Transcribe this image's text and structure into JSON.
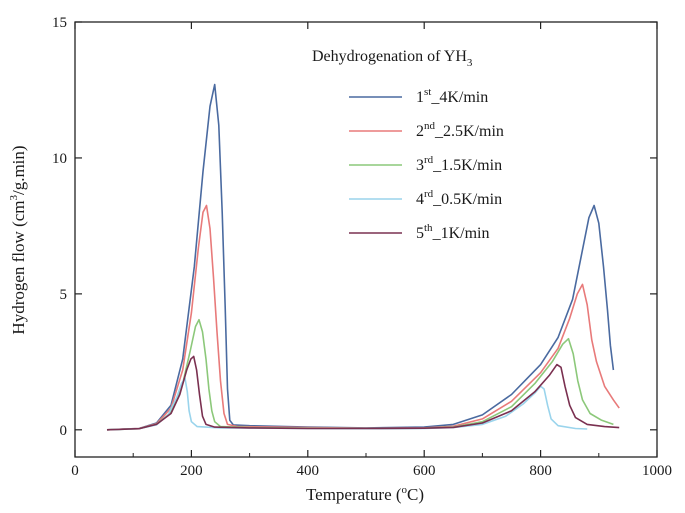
{
  "chart_data": {
    "type": "line",
    "title": "",
    "xlabel": "Temperature (",
    "xlabel_sup": "o",
    "xlabel_end": "C)",
    "ylabel": "Hydrogen  flow (cm",
    "ylabel_sup": "3",
    "ylabel_end": "/g.min)",
    "xlim": [
      0,
      1000
    ],
    "ylim": [
      -1,
      15
    ],
    "xticks": [
      0,
      200,
      400,
      600,
      800,
      1000
    ],
    "yticks": [
      0,
      5,
      10,
      15
    ],
    "grid": false,
    "legend_position": "top-right",
    "legend_title": "Dehydrogenation of YH",
    "legend_title_sub": "3",
    "series": [
      {
        "name": "1st_4K/min",
        "label_num": "1",
        "label_sup": "st",
        "label_rest": "_4K/min",
        "color": "#4a6aa0",
        "points": [
          [
            55,
            0
          ],
          [
            110,
            0.05
          ],
          [
            140,
            0.25
          ],
          [
            165,
            0.9
          ],
          [
            185,
            2.6
          ],
          [
            205,
            6.0
          ],
          [
            220,
            9.5
          ],
          [
            232,
            11.9
          ],
          [
            240,
            12.7
          ],
          [
            247,
            11.2
          ],
          [
            253,
            8.0
          ],
          [
            258,
            4.5
          ],
          [
            262,
            1.5
          ],
          [
            266,
            0.35
          ],
          [
            272,
            0.18
          ],
          [
            300,
            0.15
          ],
          [
            400,
            0.1
          ],
          [
            500,
            0.07
          ],
          [
            600,
            0.1
          ],
          [
            650,
            0.2
          ],
          [
            700,
            0.55
          ],
          [
            750,
            1.3
          ],
          [
            800,
            2.4
          ],
          [
            830,
            3.4
          ],
          [
            855,
            4.8
          ],
          [
            870,
            6.4
          ],
          [
            883,
            7.8
          ],
          [
            892,
            8.25
          ],
          [
            900,
            7.6
          ],
          [
            908,
            6.0
          ],
          [
            915,
            4.4
          ],
          [
            920,
            3.1
          ],
          [
            925,
            2.2
          ]
        ]
      },
      {
        "name": "2nd_2.5K/min",
        "label_num": "2",
        "label_sup": "nd",
        "label_rest": "_2.5K/min",
        "color": "#e87a7a",
        "points": [
          [
            55,
            0
          ],
          [
            110,
            0.05
          ],
          [
            140,
            0.22
          ],
          [
            165,
            0.8
          ],
          [
            185,
            2.2
          ],
          [
            200,
            4.3
          ],
          [
            212,
            6.7
          ],
          [
            220,
            8.0
          ],
          [
            226,
            8.25
          ],
          [
            232,
            7.4
          ],
          [
            238,
            5.6
          ],
          [
            244,
            3.6
          ],
          [
            250,
            1.8
          ],
          [
            256,
            0.6
          ],
          [
            262,
            0.2
          ],
          [
            280,
            0.12
          ],
          [
            400,
            0.08
          ],
          [
            500,
            0.06
          ],
          [
            600,
            0.07
          ],
          [
            650,
            0.13
          ],
          [
            700,
            0.4
          ],
          [
            750,
            1.05
          ],
          [
            800,
            2.1
          ],
          [
            830,
            3.0
          ],
          [
            850,
            4.1
          ],
          [
            863,
            5.0
          ],
          [
            872,
            5.35
          ],
          [
            880,
            4.6
          ],
          [
            888,
            3.3
          ],
          [
            896,
            2.5
          ],
          [
            910,
            1.6
          ],
          [
            925,
            1.1
          ],
          [
            935,
            0.8
          ]
        ]
      },
      {
        "name": "3rd_1.5K/min",
        "label_num": "3",
        "label_sup": "rd",
        "label_rest": "_1.5K/min",
        "color": "#8cc87a",
        "points": [
          [
            55,
            0
          ],
          [
            110,
            0.04
          ],
          [
            140,
            0.2
          ],
          [
            165,
            0.65
          ],
          [
            185,
            1.7
          ],
          [
            198,
            2.9
          ],
          [
            207,
            3.8
          ],
          [
            213,
            4.05
          ],
          [
            219,
            3.6
          ],
          [
            225,
            2.6
          ],
          [
            230,
            1.5
          ],
          [
            235,
            0.7
          ],
          [
            240,
            0.3
          ],
          [
            250,
            0.12
          ],
          [
            300,
            0.08
          ],
          [
            400,
            0.06
          ],
          [
            500,
            0.05
          ],
          [
            600,
            0.06
          ],
          [
            650,
            0.1
          ],
          [
            700,
            0.3
          ],
          [
            750,
            0.85
          ],
          [
            790,
            1.7
          ],
          [
            820,
            2.5
          ],
          [
            838,
            3.15
          ],
          [
            848,
            3.35
          ],
          [
            856,
            2.8
          ],
          [
            864,
            1.8
          ],
          [
            872,
            1.1
          ],
          [
            885,
            0.6
          ],
          [
            905,
            0.35
          ],
          [
            925,
            0.2
          ]
        ]
      },
      {
        "name": "4rd_0.5K/min",
        "label_num": "4",
        "label_sup": "rd",
        "label_rest": "_0.5K/min",
        "color": "#9ad4ec",
        "points": [
          [
            55,
            0
          ],
          [
            110,
            0.04
          ],
          [
            140,
            0.18
          ],
          [
            160,
            0.55
          ],
          [
            175,
            1.2
          ],
          [
            183,
            1.7
          ],
          [
            189,
            1.9
          ],
          [
            193,
            1.4
          ],
          [
            196,
            0.7
          ],
          [
            200,
            0.3
          ],
          [
            210,
            0.12
          ],
          [
            250,
            0.07
          ],
          [
            400,
            0.05
          ],
          [
            500,
            0.04
          ],
          [
            600,
            0.05
          ],
          [
            650,
            0.08
          ],
          [
            700,
            0.2
          ],
          [
            740,
            0.5
          ],
          [
            770,
            0.95
          ],
          [
            790,
            1.35
          ],
          [
            800,
            1.6
          ],
          [
            806,
            1.5
          ],
          [
            812,
            0.9
          ],
          [
            818,
            0.4
          ],
          [
            830,
            0.15
          ],
          [
            860,
            0.05
          ],
          [
            880,
            0.03
          ]
        ]
      },
      {
        "name": "5th_1K/min",
        "label_num": "5",
        "label_sup": "th",
        "label_rest": "_1K/min",
        "color": "#7a3050",
        "points": [
          [
            55,
            0
          ],
          [
            110,
            0.04
          ],
          [
            140,
            0.2
          ],
          [
            165,
            0.6
          ],
          [
            180,
            1.3
          ],
          [
            192,
            2.2
          ],
          [
            199,
            2.6
          ],
          [
            204,
            2.7
          ],
          [
            209,
            2.2
          ],
          [
            214,
            1.3
          ],
          [
            219,
            0.5
          ],
          [
            225,
            0.2
          ],
          [
            240,
            0.1
          ],
          [
            300,
            0.07
          ],
          [
            400,
            0.05
          ],
          [
            500,
            0.05
          ],
          [
            600,
            0.06
          ],
          [
            650,
            0.09
          ],
          [
            700,
            0.25
          ],
          [
            750,
            0.7
          ],
          [
            790,
            1.4
          ],
          [
            815,
            2.0
          ],
          [
            828,
            2.4
          ],
          [
            835,
            2.3
          ],
          [
            842,
            1.6
          ],
          [
            850,
            0.9
          ],
          [
            860,
            0.45
          ],
          [
            880,
            0.2
          ],
          [
            910,
            0.12
          ],
          [
            935,
            0.08
          ]
        ]
      }
    ]
  }
}
